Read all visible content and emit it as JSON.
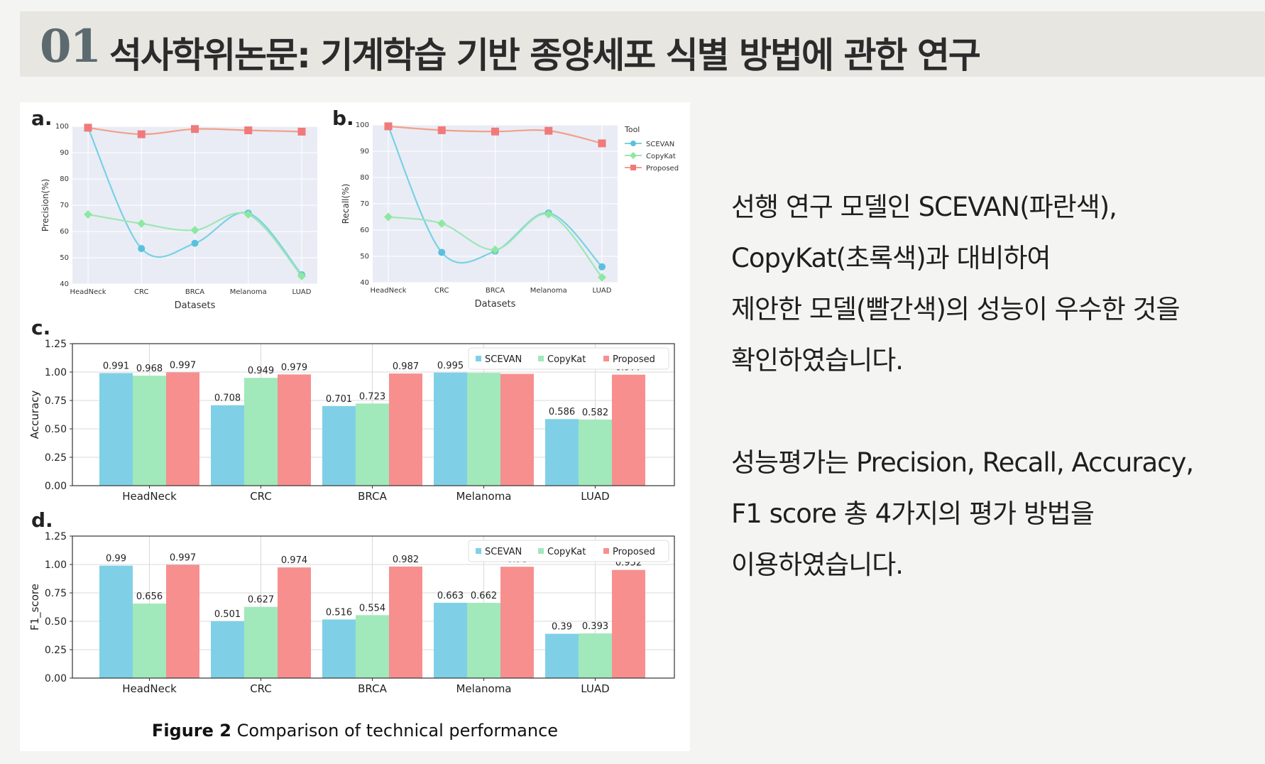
{
  "header": {
    "number": "01",
    "title": "석사학위논문: 기계학습 기반 종양세포 식별 방법에 관한 연구"
  },
  "description": {
    "paragraphs": [
      [
        "선행 연구 모델인 SCEVAN(파란색),",
        "CopyKat(초록색)과 대비하여",
        "제안한 모델(빨간색)의 성능이 우수한 것을",
        "확인하였습니다."
      ],
      [
        "성능평가는 Precision, Recall, Accuracy,",
        "F1 score 총 4가지의 평가 방법을",
        "이용하였습니다."
      ]
    ]
  },
  "figure": {
    "caption_bold": "Figure 2",
    "caption_text": "Comparison of technical performance"
  },
  "colors": {
    "SCEVAN": "#7fd0e6",
    "CopyKat": "#a1e8bb",
    "Proposed": "#f78f8f",
    "line_SCEVAN": "#79d1e4",
    "line_CopyKat": "#9ee6b5",
    "line_Proposed": "#f2a08a",
    "marker_SCEVAN": "#5bc0de",
    "marker_CopyKat": "#8ee89f",
    "marker_Proposed": "#f07a7a",
    "plot_bg": "#e9ecf5"
  },
  "chart_data": [
    {
      "panel": "a.",
      "type": "line",
      "categories": [
        "HeadNeck",
        "CRC",
        "BRCA",
        "Melanoma",
        "LUAD"
      ],
      "series": [
        {
          "name": "SCEVAN",
          "values": [
            99.5,
            53.5,
            55.5,
            67,
            43.5
          ]
        },
        {
          "name": "CopyKat",
          "values": [
            66.5,
            63,
            60.5,
            66.5,
            43
          ]
        },
        {
          "name": "Proposed",
          "values": [
            99.5,
            97,
            99,
            98.5,
            98
          ]
        }
      ],
      "xlabel": "Datasets",
      "ylabel": "Precision(%)",
      "ylim": [
        40,
        100
      ],
      "yticks": [
        40,
        50,
        60,
        70,
        80,
        90,
        100
      ],
      "grid": true
    },
    {
      "panel": "b.",
      "type": "line",
      "categories": [
        "HeadNeck",
        "CRC",
        "BRCA",
        "Melanoma",
        "LUAD"
      ],
      "series": [
        {
          "name": "SCEVAN",
          "values": [
            99.5,
            51.5,
            52,
            66.5,
            46
          ]
        },
        {
          "name": "CopyKat",
          "values": [
            65,
            62.5,
            52.5,
            66,
            42
          ]
        },
        {
          "name": "Proposed",
          "values": [
            99.5,
            98,
            97.5,
            97.8,
            93
          ]
        }
      ],
      "xlabel": "Datasets",
      "ylabel": "Recall(%)",
      "ylim": [
        40,
        100
      ],
      "yticks": [
        40,
        50,
        60,
        70,
        80,
        90,
        100
      ],
      "legend_title": "Tool",
      "legend_position": "right",
      "grid": true
    },
    {
      "panel": "c.",
      "type": "bar",
      "categories": [
        "HeadNeck",
        "CRC",
        "BRCA",
        "Melanoma",
        "LUAD"
      ],
      "series": [
        {
          "name": "SCEVAN",
          "values": [
            0.991,
            0.708,
            0.701,
            0.995,
            0.586
          ]
        },
        {
          "name": "CopyKat",
          "values": [
            0.968,
            0.949,
            0.723,
            0.993,
            0.582
          ]
        },
        {
          "name": "Proposed",
          "values": [
            0.997,
            0.979,
            0.987,
            0.984,
            0.977
          ]
        }
      ],
      "ylabel": "Accuracy",
      "ylim": [
        0,
        1.25
      ],
      "yticks": [
        "0.00",
        "0.25",
        "0.50",
        "0.75",
        "1.00",
        "1.25"
      ],
      "legend_position": "top-right",
      "grid": true
    },
    {
      "panel": "d.",
      "type": "bar",
      "categories": [
        "HeadNeck",
        "CRC",
        "BRCA",
        "Melanoma",
        "LUAD"
      ],
      "series": [
        {
          "name": "SCEVAN",
          "values": [
            0.99,
            0.501,
            0.516,
            0.663,
            0.39
          ]
        },
        {
          "name": "CopyKat",
          "values": [
            0.656,
            0.627,
            0.554,
            0.662,
            0.393
          ]
        },
        {
          "name": "Proposed",
          "values": [
            0.997,
            0.974,
            0.982,
            0.98,
            0.952
          ]
        }
      ],
      "ylabel": "F1_score",
      "ylim": [
        0,
        1.25
      ],
      "yticks": [
        "0.00",
        "0.25",
        "0.50",
        "0.75",
        "1.00",
        "1.25"
      ],
      "legend_position": "top-right",
      "grid": true
    }
  ]
}
